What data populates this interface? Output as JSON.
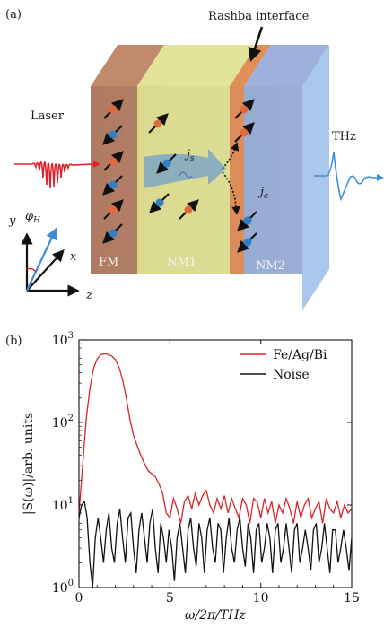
{
  "panel_a": {
    "panel_label": "(a)",
    "labels": {
      "laser": "Laser",
      "rashba": "Rashba interface",
      "thz": "THz",
      "fm": "FM",
      "nm1": "NM1",
      "nm2": "NM2",
      "js": "j",
      "js_sub": "s",
      "jc": "j",
      "jc_sub": "c",
      "phi": "φ",
      "phi_sub": "H",
      "axis_x": "x",
      "axis_y": "y",
      "axis_z": "z"
    },
    "colors": {
      "fm": "#b07a62",
      "nm1": "#d9d98c",
      "rashba": "#d9824a",
      "nm2": "#8ea3cf",
      "laser": "#e0202a",
      "thz": "#3d8fd1",
      "spin_up": "#e06a3a",
      "spin_down": "#2f7fc4"
    }
  },
  "panel_b": {
    "panel_label": "(b)"
  },
  "chart_data": {
    "type": "line",
    "xlabel": "ω/2π/THz",
    "ylabel": "|S(ω)|/arb. units",
    "xlim": [
      0,
      15
    ],
    "ylim": [
      1,
      1000
    ],
    "yscale": "log",
    "x_ticks": [
      "0",
      "5",
      "10",
      "15"
    ],
    "y_ticks": [
      {
        "base": "10",
        "exp": "0"
      },
      {
        "base": "10",
        "exp": "1"
      },
      {
        "base": "10",
        "exp": "2"
      },
      {
        "base": "10",
        "exp": "3"
      }
    ],
    "legend_position": "top-right",
    "series": [
      {
        "name": "Fe/Ag/Bi",
        "color": "#d9232a",
        "x": [
          0,
          0.2,
          0.4,
          0.6,
          0.8,
          1.0,
          1.2,
          1.4,
          1.6,
          1.8,
          2.0,
          2.2,
          2.4,
          2.6,
          2.8,
          3.0,
          3.2,
          3.4,
          3.6,
          3.8,
          4.0,
          4.2,
          4.4,
          4.6,
          4.8,
          5.0,
          5.2,
          5.4,
          5.6,
          5.8,
          6.0,
          6.2,
          6.4,
          6.6,
          6.8,
          7.0,
          7.2,
          7.4,
          7.6,
          7.8,
          8.0,
          8.2,
          8.4,
          8.6,
          8.8,
          9.0,
          9.2,
          9.4,
          9.6,
          9.8,
          10.0,
          10.2,
          10.4,
          10.6,
          10.8,
          11.0,
          11.2,
          11.4,
          11.6,
          11.8,
          12.0,
          12.2,
          12.4,
          12.6,
          12.8,
          13.0,
          13.2,
          13.4,
          13.6,
          13.8,
          14.0,
          14.2,
          14.4,
          14.6,
          14.8,
          15.0
        ],
        "values": [
          8,
          30,
          110,
          260,
          450,
          590,
          660,
          680,
          670,
          640,
          580,
          470,
          330,
          200,
          110,
          70,
          52,
          40,
          32,
          26,
          24,
          22,
          18,
          14,
          8,
          7,
          12,
          9,
          6,
          11,
          13,
          9,
          14,
          10,
          13,
          15,
          10,
          8,
          12,
          9,
          13,
          8,
          12,
          9,
          7,
          12,
          10,
          6,
          12,
          11,
          7,
          12,
          8,
          11,
          6,
          10,
          8,
          12,
          9,
          6,
          11,
          7,
          10,
          12,
          7,
          9,
          11,
          6,
          12,
          9,
          8,
          11,
          7,
          10,
          8,
          9
        ]
      },
      {
        "name": "Noise",
        "color": "#111111",
        "x": [
          0,
          0.15,
          0.3,
          0.45,
          0.6,
          0.75,
          0.9,
          1.05,
          1.2,
          1.35,
          1.5,
          1.65,
          1.8,
          1.95,
          2.1,
          2.25,
          2.4,
          2.55,
          2.7,
          2.85,
          3.0,
          3.15,
          3.3,
          3.45,
          3.6,
          3.75,
          3.9,
          4.05,
          4.2,
          4.35,
          4.5,
          4.65,
          4.8,
          4.95,
          5.1,
          5.25,
          5.4,
          5.55,
          5.7,
          5.85,
          6.0,
          6.15,
          6.3,
          6.45,
          6.6,
          6.75,
          6.9,
          7.05,
          7.2,
          7.35,
          7.5,
          7.65,
          7.8,
          7.95,
          8.1,
          8.25,
          8.4,
          8.55,
          8.7,
          8.85,
          9.0,
          9.15,
          9.3,
          9.45,
          9.6,
          9.75,
          9.9,
          10.05,
          10.2,
          10.35,
          10.5,
          10.65,
          10.8,
          10.95,
          11.1,
          11.25,
          11.4,
          11.55,
          11.7,
          11.85,
          12.0,
          12.15,
          12.3,
          12.45,
          12.6,
          12.75,
          12.9,
          13.05,
          13.2,
          13.35,
          13.5,
          13.65,
          13.8,
          13.95,
          14.1,
          14.25,
          14.4,
          14.55,
          14.7,
          14.85,
          15.0
        ],
        "values": [
          7,
          10,
          11,
          7,
          2,
          1,
          4,
          7,
          4,
          2,
          5,
          8,
          3,
          2,
          6,
          9,
          4,
          2,
          7,
          8,
          3,
          1.5,
          5,
          8,
          4,
          2,
          6,
          9,
          3,
          1.5,
          6,
          4,
          2,
          5,
          3,
          1.2,
          4,
          6,
          3,
          1.5,
          5,
          7,
          3,
          1.8,
          6,
          4,
          1.5,
          5,
          7,
          3,
          2,
          6,
          5,
          1.5,
          4,
          7,
          3,
          2,
          5,
          7,
          3,
          1.8,
          6,
          4,
          1.5,
          5,
          6,
          2,
          3,
          6,
          4,
          1.5,
          5,
          6,
          2,
          3,
          6,
          3,
          1.5,
          5,
          6,
          2,
          3,
          5,
          3,
          1.6,
          5,
          6,
          2,
          3,
          6,
          3,
          1.5,
          5,
          5,
          2,
          3,
          5,
          3,
          1.6,
          4
        ]
      }
    ]
  }
}
